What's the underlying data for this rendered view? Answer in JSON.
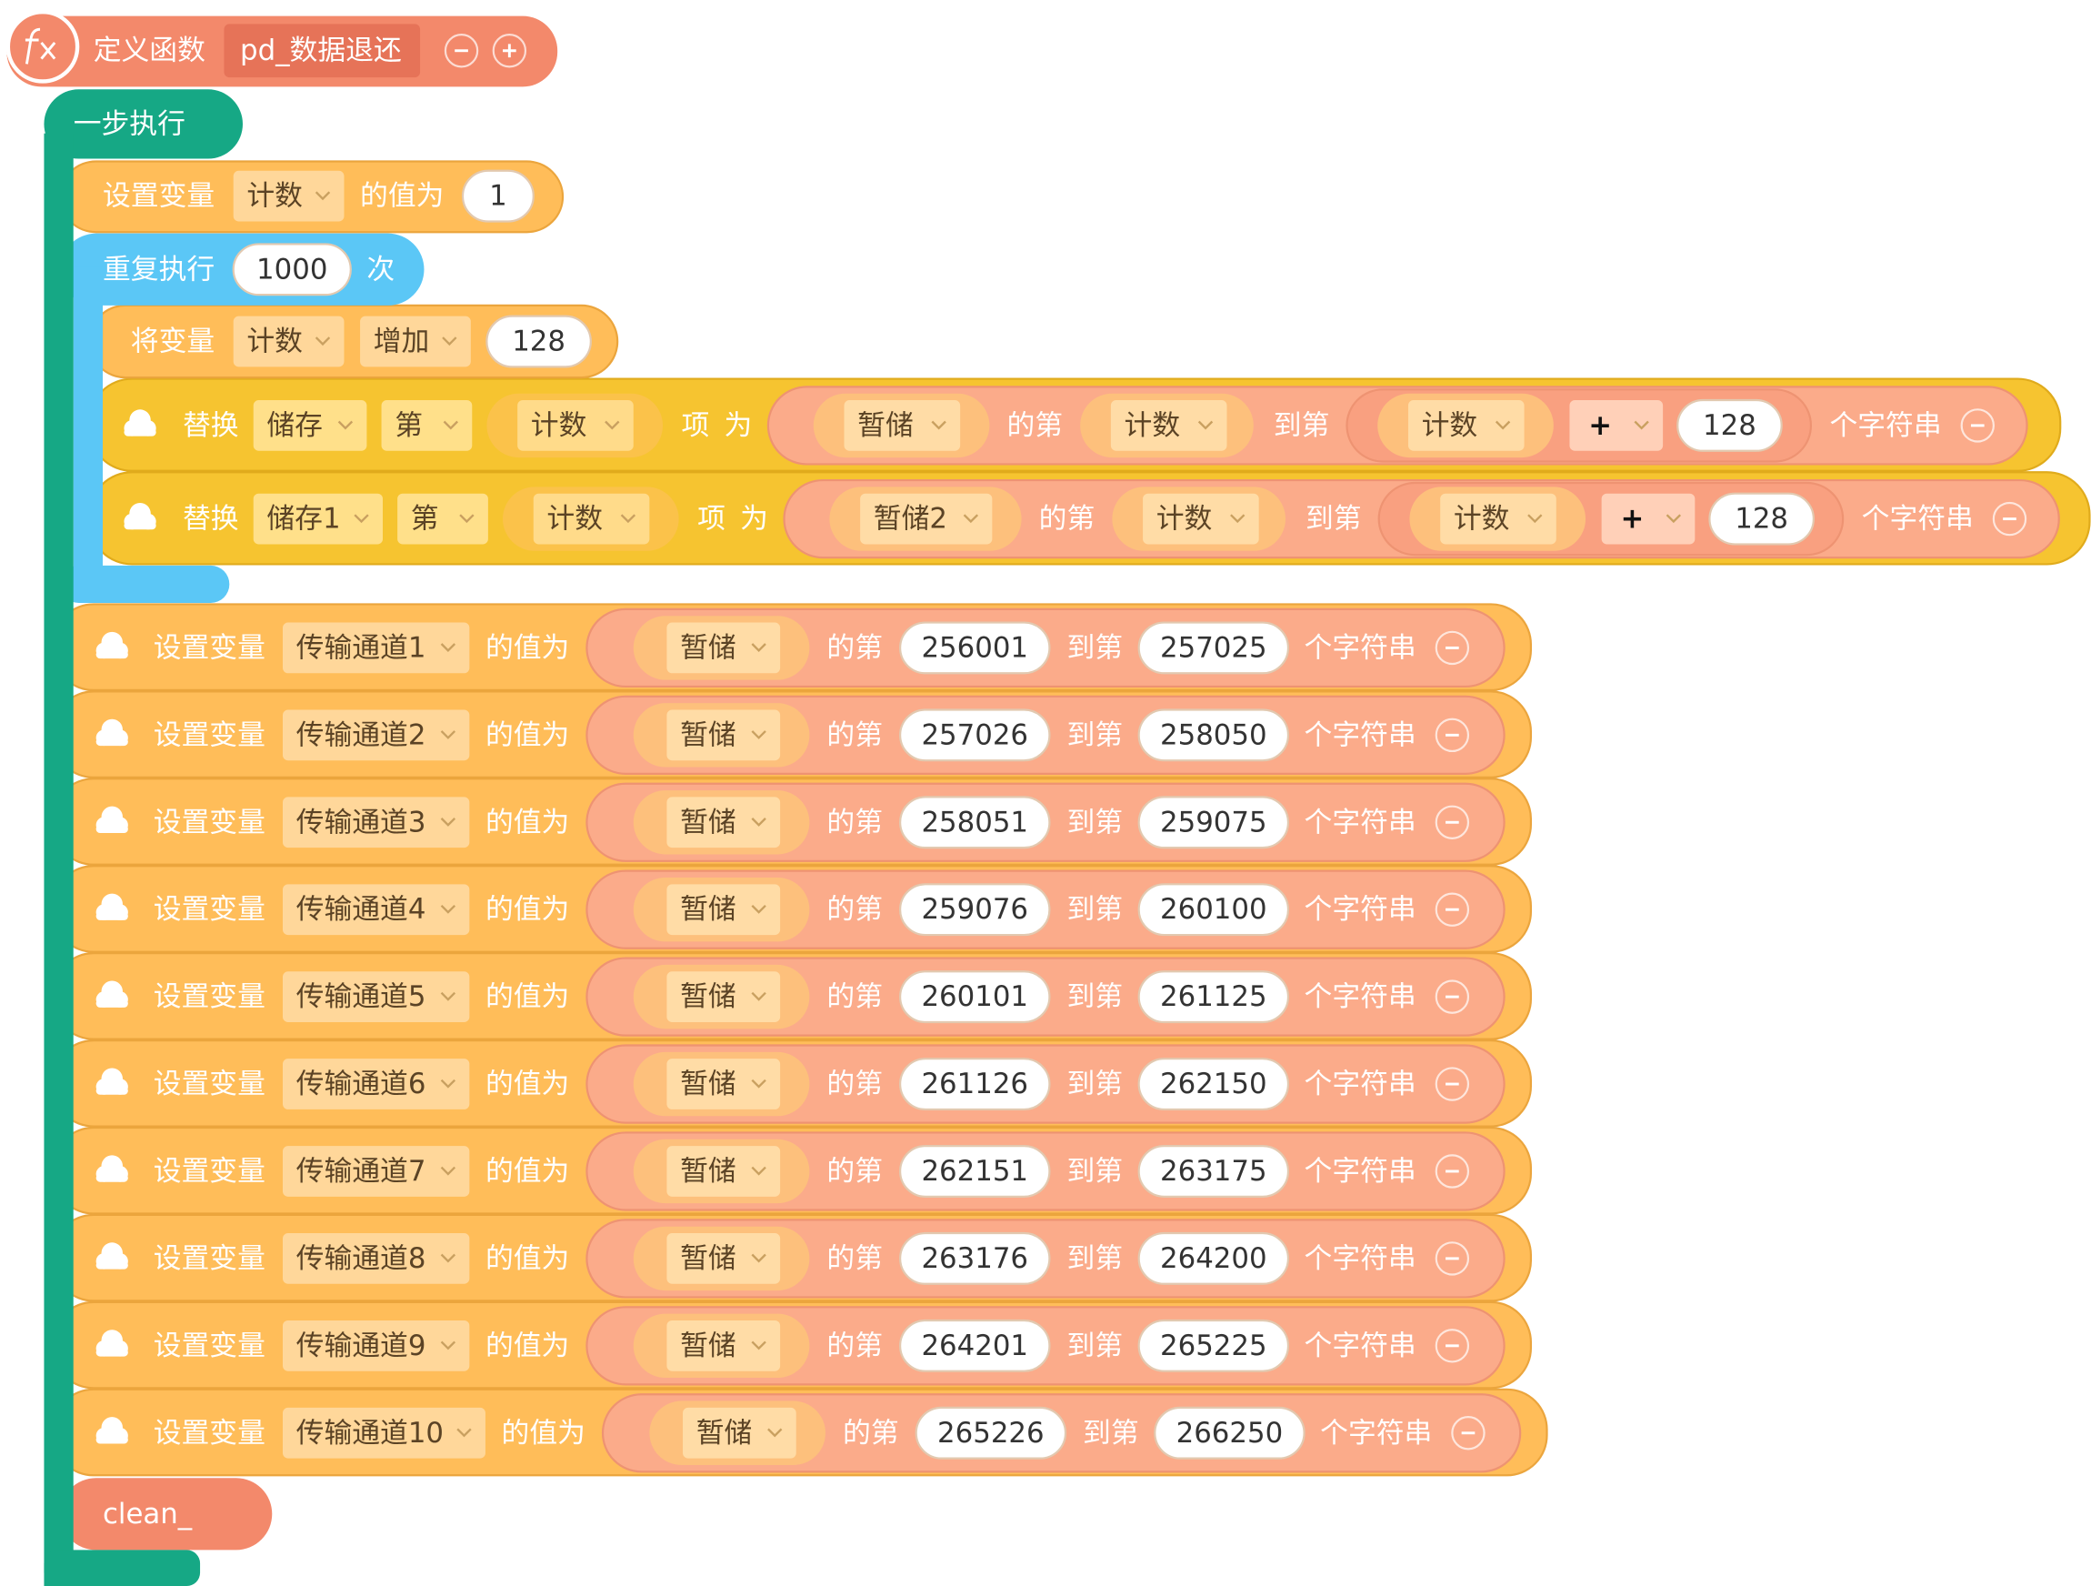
{
  "define": {
    "label": "定义函数",
    "name": "pd_数据退还"
  },
  "step": "一步执行",
  "set_count": {
    "label": "设置变量",
    "var": "计数",
    "of": "的值为",
    "value": 1
  },
  "repeat": {
    "label": "重复执行",
    "times": 1000,
    "unit": "次"
  },
  "change": {
    "label": "将变量",
    "var": "计数",
    "op": "增加",
    "value": 128
  },
  "replace": [
    {
      "label": "替换",
      "list": "储存",
      "nth": "第",
      "index": "计数",
      "item": "项",
      "as": "为",
      "source": "暂储",
      "of": "的第",
      "from": "计数",
      "to": "到第",
      "start": "计数",
      "op": "+",
      "add": 128,
      "suffix": "个字符串"
    },
    {
      "label": "替换",
      "list": "储存1",
      "nth": "第",
      "index": "计数",
      "item": "项",
      "as": "为",
      "source": "暂储2",
      "of": "的第",
      "from": "计数",
      "to": "到第",
      "start": "计数",
      "op": "+",
      "add": 128,
      "suffix": "个字符串"
    }
  ],
  "sets": [
    {
      "label": "设置变量",
      "var": "传输通道1",
      "of": "的值为",
      "source": "暂储",
      "from_label": "的第",
      "from": 256001,
      "to_label": "到第",
      "to": 257025,
      "suffix": "个字符串"
    },
    {
      "label": "设置变量",
      "var": "传输通道2",
      "of": "的值为",
      "source": "暂储",
      "from_label": "的第",
      "from": 257026,
      "to_label": "到第",
      "to": 258050,
      "suffix": "个字符串"
    },
    {
      "label": "设置变量",
      "var": "传输通道3",
      "of": "的值为",
      "source": "暂储",
      "from_label": "的第",
      "from": 258051,
      "to_label": "到第",
      "to": 259075,
      "suffix": "个字符串"
    },
    {
      "label": "设置变量",
      "var": "传输通道4",
      "of": "的值为",
      "source": "暂储",
      "from_label": "的第",
      "from": 259076,
      "to_label": "到第",
      "to": 260100,
      "suffix": "个字符串"
    },
    {
      "label": "设置变量",
      "var": "传输通道5",
      "of": "的值为",
      "source": "暂储",
      "from_label": "的第",
      "from": 260101,
      "to_label": "到第",
      "to": 261125,
      "suffix": "个字符串"
    },
    {
      "label": "设置变量",
      "var": "传输通道6",
      "of": "的值为",
      "source": "暂储",
      "from_label": "的第",
      "from": 261126,
      "to_label": "到第",
      "to": 262150,
      "suffix": "个字符串"
    },
    {
      "label": "设置变量",
      "var": "传输通道7",
      "of": "的值为",
      "source": "暂储",
      "from_label": "的第",
      "from": 262151,
      "to_label": "到第",
      "to": 263175,
      "suffix": "个字符串"
    },
    {
      "label": "设置变量",
      "var": "传输通道8",
      "of": "的值为",
      "source": "暂储",
      "from_label": "的第",
      "from": 263176,
      "to_label": "到第",
      "to": 264200,
      "suffix": "个字符串"
    },
    {
      "label": "设置变量",
      "var": "传输通道9",
      "of": "的值为",
      "source": "暂储",
      "from_label": "的第",
      "from": 264201,
      "to_label": "到第",
      "to": 265225,
      "suffix": "个字符串"
    },
    {
      "label": "设置变量",
      "var": "传输通道10",
      "of": "的值为",
      "source": "暂储",
      "from_label": "的第",
      "from": 265226,
      "to_label": "到第",
      "to": 266250,
      "suffix": "个字符串"
    }
  ],
  "clean": "clean_"
}
